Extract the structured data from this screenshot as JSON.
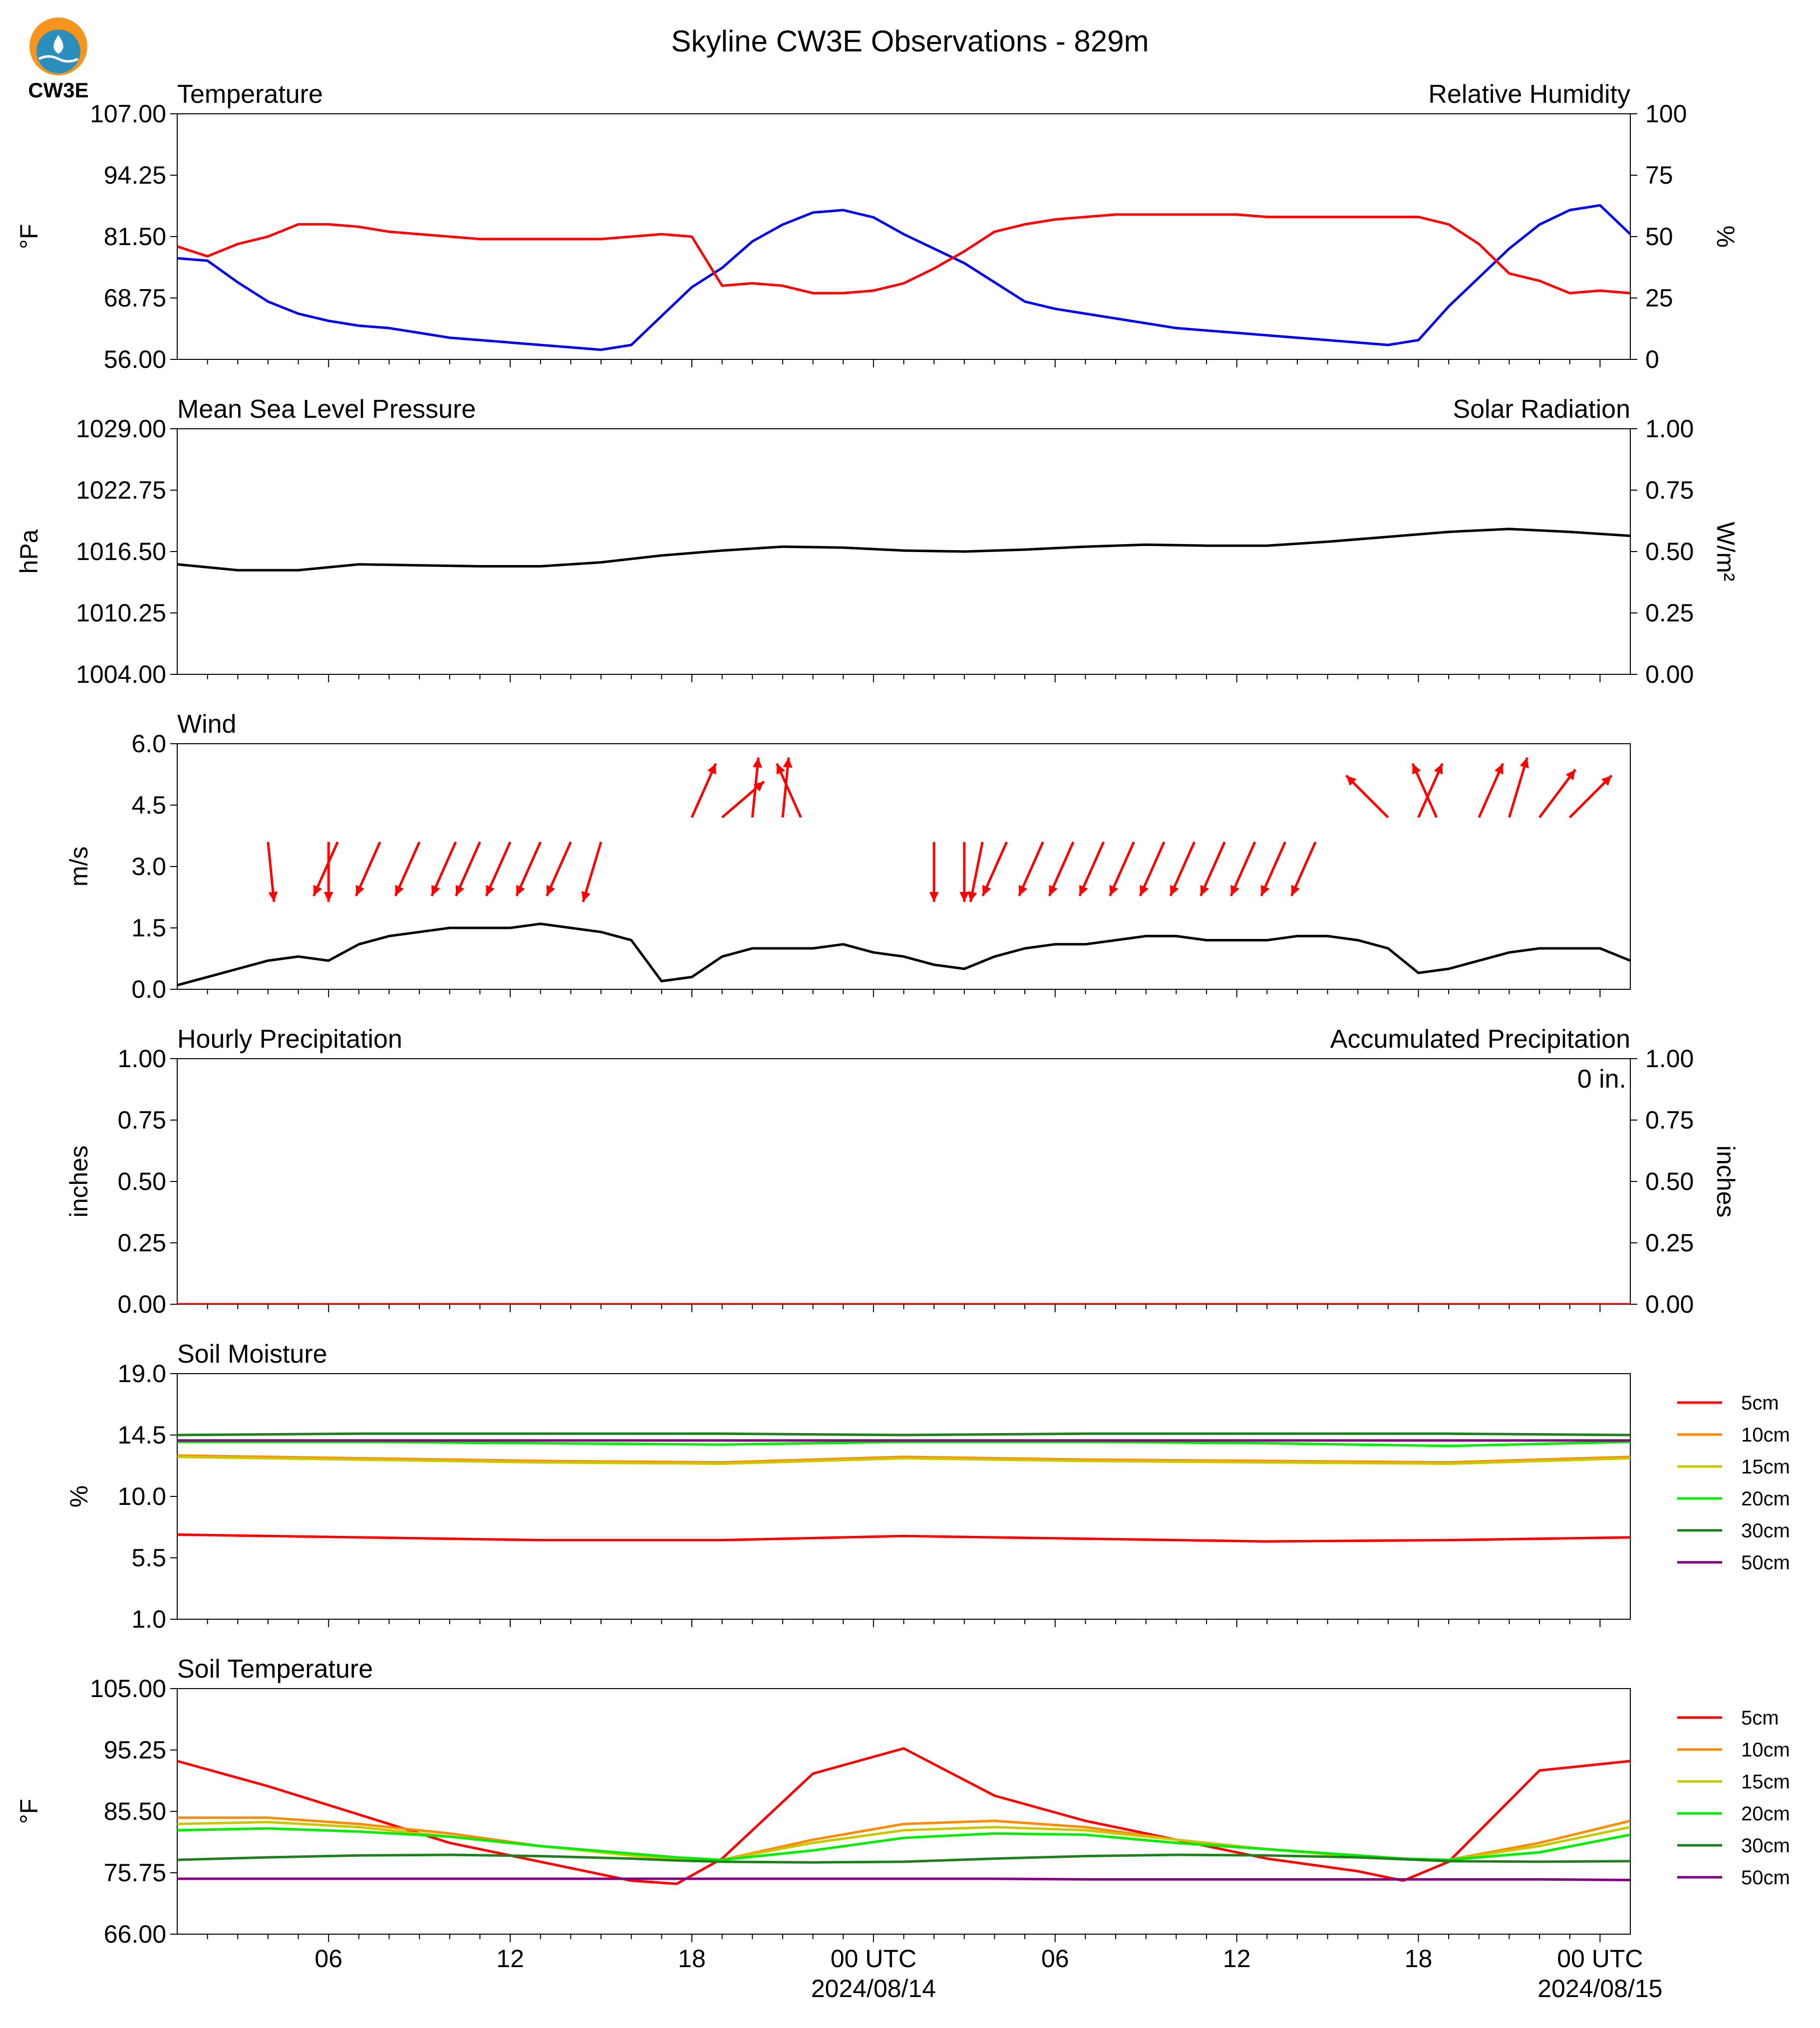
{
  "page": {
    "title": "Skyline CW3E Observations - 829m",
    "logo_text": "CW3E"
  },
  "colors": {
    "blue": "#0000ee",
    "red": "#ff0000",
    "green": "#008000",
    "black": "#000000",
    "orange": "#ff8c00",
    "olive": "#c8c800",
    "lime": "#00ee00",
    "darkgreen": "#1f7f1f",
    "purple": "#800080",
    "logo_orange": "#f7941d",
    "logo_blue": "#2a8fbd"
  },
  "x_axis": {
    "tick_labels": [
      "06",
      "12",
      "18",
      "00 UTC",
      "06",
      "12",
      "18",
      "00 UTC"
    ],
    "date_labels": [
      "2024/08/14",
      "2024/08/15"
    ],
    "range_hours": [
      0,
      48
    ]
  },
  "chart_data": [
    {
      "type": "line",
      "panel": "temperature",
      "title_left": "Temperature",
      "title_right": "Relative Humidity",
      "ylabel_left": "°F",
      "ylabel_right": "%",
      "ylim_left": [
        56.0,
        107.0
      ],
      "ylim_right": [
        0,
        100
      ],
      "yticks_left": [
        "56.00",
        "68.75",
        "81.50",
        "94.25",
        "107.00"
      ],
      "yticks_right": [
        "0",
        "25",
        "50",
        "75",
        "100"
      ],
      "x": [
        0,
        1,
        2,
        3,
        4,
        5,
        6,
        7,
        8,
        9,
        10,
        11,
        12,
        13,
        14,
        15,
        16,
        17,
        18,
        19,
        20,
        21,
        22,
        23,
        24,
        25,
        26,
        27,
        28,
        29,
        30,
        31,
        32,
        33,
        34,
        35,
        36,
        37,
        38,
        39,
        40,
        41,
        42,
        43,
        44,
        45,
        46,
        47,
        48
      ],
      "series": [
        {
          "name": "Temperature",
          "axis": "left",
          "color": "blue",
          "values": [
            77.0,
            76.5,
            72.0,
            68.0,
            65.5,
            64.0,
            63.0,
            62.5,
            61.5,
            60.5,
            60.0,
            59.5,
            59.0,
            58.5,
            58.0,
            59.0,
            65.0,
            71.0,
            75.0,
            80.5,
            84.0,
            86.5,
            87.0,
            85.5,
            82.0,
            79.0,
            76.0,
            72.0,
            68.0,
            66.5,
            65.5,
            64.5,
            63.5,
            62.5,
            62.0,
            61.5,
            61.0,
            60.5,
            60.0,
            59.5,
            59.0,
            60.0,
            67.0,
            73.0,
            79.0,
            84.0,
            87.0,
            88.0,
            82.0
          ]
        },
        {
          "name": "Relative Humidity",
          "axis": "right",
          "color": "red",
          "values": [
            46,
            42,
            47,
            50,
            55,
            55,
            54,
            52,
            51,
            50,
            49,
            49,
            49,
            49,
            49,
            50,
            51,
            50,
            30,
            31,
            30,
            27,
            27,
            28,
            31,
            37,
            44,
            52,
            55,
            57,
            58,
            59,
            59,
            59,
            59,
            59,
            58,
            58,
            58,
            58,
            58,
            58,
            55,
            47,
            35,
            32,
            27,
            28,
            27
          ]
        }
      ]
    },
    {
      "type": "line",
      "panel": "pressure",
      "title_left": "Mean Sea Level Pressure",
      "title_right": "Solar Radiation",
      "ylabel_left": "hPa",
      "ylabel_right": "W/m²",
      "ylim_left": [
        1004.0,
        1029.0
      ],
      "ylim_right": [
        0.0,
        1.0
      ],
      "yticks_left": [
        "1004.00",
        "1010.25",
        "1016.50",
        "1022.75",
        "1029.00"
      ],
      "yticks_right": [
        "0.00",
        "0.25",
        "0.50",
        "0.75",
        "1.00"
      ],
      "x": [
        0,
        2,
        4,
        6,
        8,
        10,
        12,
        14,
        16,
        18,
        20,
        22,
        24,
        26,
        28,
        30,
        32,
        34,
        36,
        38,
        40,
        42,
        44,
        46,
        48
      ],
      "series": [
        {
          "name": "",
          "axis": "left",
          "color": "black",
          "values": [
            1015.2,
            1014.6,
            1014.6,
            1015.2,
            1015.1,
            1015.0,
            1015.0,
            1015.4,
            1016.1,
            1016.6,
            1017.0,
            1016.9,
            1016.6,
            1016.5,
            1016.7,
            1017.0,
            1017.2,
            1017.1,
            1017.1,
            1017.5,
            1018.0,
            1018.5,
            1018.8,
            1018.5,
            1018.1
          ]
        }
      ]
    },
    {
      "type": "line",
      "panel": "wind",
      "title_left": "Wind",
      "ylabel_left": "m/s",
      "ylim_left": [
        0.0,
        6.0
      ],
      "yticks_left": [
        "0.0",
        "1.5",
        "3.0",
        "4.5",
        "6.0"
      ],
      "x": [
        0,
        1,
        2,
        3,
        4,
        5,
        6,
        7,
        8,
        9,
        10,
        11,
        12,
        13,
        14,
        15,
        16,
        17,
        18,
        19,
        20,
        21,
        22,
        23,
        24,
        25,
        26,
        27,
        28,
        29,
        30,
        31,
        32,
        33,
        34,
        35,
        36,
        37,
        38,
        39,
        40,
        41,
        42,
        43,
        44,
        45,
        46,
        47,
        48
      ],
      "series": [
        {
          "name": "",
          "axis": "left",
          "color": "black",
          "values": [
            0.1,
            0.3,
            0.5,
            0.7,
            0.8,
            0.7,
            1.1,
            1.3,
            1.4,
            1.5,
            1.5,
            1.5,
            1.6,
            1.5,
            1.4,
            1.2,
            0.2,
            0.3,
            0.8,
            1.0,
            1.0,
            1.0,
            1.1,
            0.9,
            0.8,
            0.6,
            0.5,
            0.8,
            1.0,
            1.1,
            1.1,
            1.2,
            1.3,
            1.3,
            1.2,
            1.2,
            1.2,
            1.3,
            1.3,
            1.2,
            1.0,
            0.4,
            0.5,
            0.7,
            0.9,
            1.0,
            1.0,
            1.0,
            0.7
          ]
        }
      ],
      "arrows": [
        {
          "x": 3.0,
          "y": 3.6,
          "u": 0.1,
          "v": -1.0
        },
        {
          "x": 5.0,
          "y": 3.6,
          "u": 0.0,
          "v": -1.0
        },
        {
          "x": 5.3,
          "y": 3.6,
          "u": -0.4,
          "v": -0.9
        },
        {
          "x": 6.7,
          "y": 3.6,
          "u": -0.4,
          "v": -0.9
        },
        {
          "x": 8.0,
          "y": 3.6,
          "u": -0.4,
          "v": -0.9
        },
        {
          "x": 9.2,
          "y": 3.6,
          "u": -0.4,
          "v": -0.9
        },
        {
          "x": 10.0,
          "y": 3.6,
          "u": -0.4,
          "v": -0.9
        },
        {
          "x": 11.0,
          "y": 3.6,
          "u": -0.4,
          "v": -0.9
        },
        {
          "x": 12.0,
          "y": 3.6,
          "u": -0.4,
          "v": -0.9
        },
        {
          "x": 13.0,
          "y": 3.6,
          "u": -0.4,
          "v": -0.9
        },
        {
          "x": 14.0,
          "y": 3.6,
          "u": -0.3,
          "v": -1.0
        },
        {
          "x": 17.0,
          "y": 4.2,
          "u": 0.4,
          "v": 0.9
        },
        {
          "x": 18.0,
          "y": 4.2,
          "u": 0.7,
          "v": 0.6
        },
        {
          "x": 19.0,
          "y": 4.2,
          "u": 0.1,
          "v": 1.0
        },
        {
          "x": 20.0,
          "y": 4.2,
          "u": 0.1,
          "v": 1.0
        },
        {
          "x": 20.6,
          "y": 4.2,
          "u": -0.4,
          "v": 0.9
        },
        {
          "x": 25.0,
          "y": 3.6,
          "u": 0.0,
          "v": -1.0
        },
        {
          "x": 26.0,
          "y": 3.6,
          "u": 0.0,
          "v": -1.0
        },
        {
          "x": 26.6,
          "y": 3.6,
          "u": -0.2,
          "v": -1.0
        },
        {
          "x": 27.4,
          "y": 3.6,
          "u": -0.4,
          "v": -0.9
        },
        {
          "x": 28.6,
          "y": 3.6,
          "u": -0.4,
          "v": -0.9
        },
        {
          "x": 29.6,
          "y": 3.6,
          "u": -0.4,
          "v": -0.9
        },
        {
          "x": 30.6,
          "y": 3.6,
          "u": -0.4,
          "v": -0.9
        },
        {
          "x": 31.6,
          "y": 3.6,
          "u": -0.4,
          "v": -0.9
        },
        {
          "x": 32.6,
          "y": 3.6,
          "u": -0.4,
          "v": -0.9
        },
        {
          "x": 33.6,
          "y": 3.6,
          "u": -0.4,
          "v": -0.9
        },
        {
          "x": 34.6,
          "y": 3.6,
          "u": -0.4,
          "v": -0.9
        },
        {
          "x": 35.6,
          "y": 3.6,
          "u": -0.4,
          "v": -0.9
        },
        {
          "x": 36.6,
          "y": 3.6,
          "u": -0.4,
          "v": -0.9
        },
        {
          "x": 37.6,
          "y": 3.6,
          "u": -0.4,
          "v": -0.9
        },
        {
          "x": 40.0,
          "y": 4.2,
          "u": -0.7,
          "v": 0.7
        },
        {
          "x": 41.0,
          "y": 4.2,
          "u": 0.4,
          "v": 0.9
        },
        {
          "x": 41.6,
          "y": 4.2,
          "u": -0.4,
          "v": 0.9
        },
        {
          "x": 43.0,
          "y": 4.2,
          "u": 0.4,
          "v": 0.9
        },
        {
          "x": 44.0,
          "y": 4.2,
          "u": 0.3,
          "v": 1.0
        },
        {
          "x": 45.0,
          "y": 4.2,
          "u": 0.6,
          "v": 0.8
        },
        {
          "x": 46.0,
          "y": 4.2,
          "u": 0.7,
          "v": 0.7
        }
      ]
    },
    {
      "type": "line",
      "panel": "precipitation",
      "title_left": "Hourly Precipitation",
      "title_right": "Accumulated Precipitation",
      "annotation": "0 in.",
      "ylabel_left": "inches",
      "ylabel_right": "inches",
      "ylim_left": [
        0.0,
        1.0
      ],
      "ylim_right": [
        0.0,
        1.0
      ],
      "yticks_left": [
        "0.00",
        "0.25",
        "0.50",
        "0.75",
        "1.00"
      ],
      "yticks_right": [
        "0.00",
        "0.25",
        "0.50",
        "0.75",
        "1.00"
      ],
      "x": [
        0,
        48
      ],
      "series": [
        {
          "name": "",
          "axis": "left",
          "color": "red",
          "values": [
            0,
            0
          ]
        }
      ]
    },
    {
      "type": "line",
      "panel": "soil_moisture",
      "title_left": "Soil Moisture",
      "ylabel_left": "%",
      "ylim_left": [
        1.0,
        19.0
      ],
      "yticks_left": [
        "1.0",
        "5.5",
        "10.0",
        "14.5",
        "19.0"
      ],
      "x": [
        0,
        6,
        12,
        18,
        24,
        30,
        36,
        42,
        48
      ],
      "series": [
        {
          "name": "5cm",
          "color": "red",
          "values": [
            7.2,
            7.0,
            6.8,
            6.8,
            7.1,
            6.9,
            6.7,
            6.8,
            7.0
          ]
        },
        {
          "name": "10cm",
          "color": "orange",
          "values": [
            13.0,
            12.8,
            12.6,
            12.5,
            12.9,
            12.7,
            12.6,
            12.5,
            12.9
          ]
        },
        {
          "name": "15cm",
          "color": "olive",
          "values": [
            12.9,
            12.7,
            12.5,
            12.4,
            12.8,
            12.6,
            12.5,
            12.4,
            12.8
          ]
        },
        {
          "name": "20cm",
          "color": "lime",
          "values": [
            14.0,
            14.0,
            13.9,
            13.8,
            14.0,
            14.0,
            13.9,
            13.7,
            14.0
          ]
        },
        {
          "name": "30cm",
          "color": "darkgreen",
          "values": [
            14.5,
            14.6,
            14.6,
            14.6,
            14.5,
            14.6,
            14.6,
            14.6,
            14.5
          ]
        },
        {
          "name": "50cm",
          "color": "purple",
          "values": [
            14.1,
            14.1,
            14.1,
            14.1,
            14.1,
            14.1,
            14.1,
            14.1,
            14.1
          ]
        }
      ],
      "legend": "right"
    },
    {
      "type": "line",
      "panel": "soil_temperature",
      "title_left": "Soil Temperature",
      "ylabel_left": "°F",
      "ylim_left": [
        66.0,
        105.0
      ],
      "yticks_left": [
        "66.00",
        "75.75",
        "85.50",
        "95.25",
        "105.00"
      ],
      "x": [
        0,
        3,
        6,
        9,
        12,
        15,
        16.5,
        18,
        21,
        24,
        27,
        30,
        33,
        36,
        39,
        40.5,
        42,
        45,
        48
      ],
      "series": [
        {
          "name": "5cm",
          "color": "red",
          "values": [
            93.5,
            89.5,
            85.0,
            80.5,
            77.5,
            74.5,
            74.0,
            78.0,
            91.5,
            95.5,
            88.0,
            84.0,
            81.0,
            78.0,
            76.0,
            74.5,
            77.5,
            92.0,
            93.5
          ]
        },
        {
          "name": "10cm",
          "color": "orange",
          "values": [
            84.5,
            84.5,
            83.5,
            82.0,
            80.0,
            78.5,
            78.0,
            77.8,
            81.0,
            83.5,
            84.0,
            83.0,
            81.0,
            79.5,
            78.5,
            78.0,
            77.8,
            80.5,
            84.0
          ]
        },
        {
          "name": "15cm",
          "color": "olive",
          "values": [
            83.5,
            83.8,
            83.0,
            81.5,
            80.0,
            78.5,
            78.0,
            77.8,
            80.5,
            82.5,
            83.0,
            82.5,
            81.0,
            79.5,
            78.3,
            78.0,
            77.8,
            80.0,
            83.0
          ]
        },
        {
          "name": "20cm",
          "color": "lime",
          "values": [
            82.5,
            82.8,
            82.3,
            81.5,
            80.0,
            78.8,
            78.2,
            77.8,
            79.3,
            81.3,
            82.0,
            81.8,
            80.5,
            79.5,
            78.5,
            78.0,
            77.8,
            79.0,
            81.8
          ]
        },
        {
          "name": "30cm",
          "color": "darkgreen",
          "values": [
            77.8,
            78.2,
            78.5,
            78.6,
            78.4,
            78.0,
            77.7,
            77.5,
            77.4,
            77.5,
            78.0,
            78.4,
            78.6,
            78.5,
            78.2,
            77.9,
            77.6,
            77.5,
            77.6
          ]
        },
        {
          "name": "50cm",
          "color": "purple",
          "values": [
            74.8,
            74.8,
            74.8,
            74.8,
            74.8,
            74.8,
            74.8,
            74.8,
            74.8,
            74.8,
            74.8,
            74.7,
            74.7,
            74.7,
            74.7,
            74.7,
            74.7,
            74.7,
            74.6
          ]
        }
      ],
      "legend": "right"
    }
  ]
}
